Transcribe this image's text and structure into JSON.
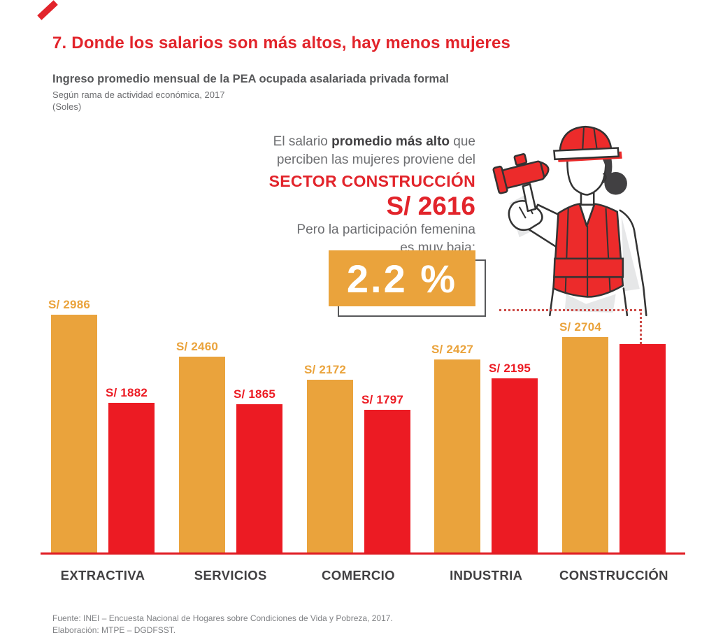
{
  "header": {
    "title": "7. Donde los salarios son más altos, hay menos mujeres",
    "subtitle": "Ingreso promedio mensual de la PEA ocupada asalariada privada formal",
    "subtitle2": "Según rama de actividad económica, 2017",
    "unit_note": "(Soles)"
  },
  "callout": {
    "line1_pre": "El salario ",
    "line1_bold": "promedio más alto",
    "line1_post": " que",
    "line2": "perciben las mujeres proviene del",
    "sector": "SECTOR CONSTRUCCIÓN",
    "amount": "S/ 2616",
    "line3": "Pero la participación femenina",
    "line4": "es muy baja:",
    "badge_value": "2.2 %"
  },
  "chart_data": {
    "type": "bar",
    "title": "Ingreso promedio mensual de la PEA ocupada asalariada privada formal",
    "subtitle": "Según rama de actividad económica, 2017",
    "unit": "Soles",
    "categories": [
      "EXTRACTIVA",
      "SERVICIOS",
      "COMERCIO",
      "INDUSTRIA",
      "CONSTRUCCIÓN"
    ],
    "series": [
      {
        "name": "serie-dorada",
        "color": "#EAA33C",
        "values": [
          2986,
          2460,
          2172,
          2427,
          2704
        ],
        "labels": [
          "S/ 2986",
          "S/ 2460",
          "S/ 2172",
          "S/ 2427",
          "S/ 2704"
        ]
      },
      {
        "name": "serie-roja-mujeres",
        "color": "#EC1B23",
        "values": [
          1882,
          1865,
          1797,
          2195,
          2616
        ],
        "labels": [
          "S/ 1882",
          "S/ 1865",
          "S/ 1797",
          "S/ 2195",
          ""
        ]
      }
    ],
    "ylim": [
      0,
      3000
    ],
    "legend": "none",
    "grid": false,
    "highlight": {
      "category": "CONSTRUCCIÓN",
      "value": 2616,
      "female_participation_pct": 2.2
    }
  },
  "footer": {
    "source": "Fuente: INEI – Encuesta Nacional de Hogares sobre Condiciones de Vida y Pobreza, 2017.",
    "elaboration": "Elaboración: MTPE – DGDFSST."
  },
  "colors": {
    "title_red": "#E2242B",
    "bar_gold": "#EAA33C",
    "bar_red": "#EC1B23",
    "text_dark": "#414042",
    "text_gray": "#6D6E71",
    "footer_gray": "#808285",
    "badge_bg": "#EAA33C",
    "badge_text": "#FFFFFF",
    "dotted_line": "#CC4B47",
    "baseline_red": "#E01B22"
  }
}
